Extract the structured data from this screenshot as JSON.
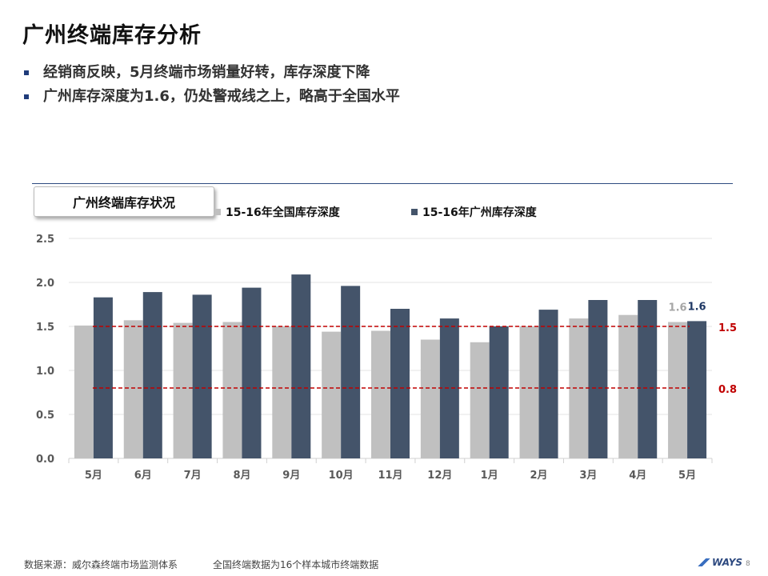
{
  "page": {
    "title": "广州终端库存分析",
    "bullets": [
      "经销商反映，5月终端市场销量好转，库存深度下降",
      "广州库存深度为1.6，仍处警戒线之上，略高于全国水平"
    ],
    "chart_label": "广州终端库存状况",
    "footer_source": "数据来源：威尔森终端市场监测体系",
    "footer_note": "全国终端数据为16个样本城市终端数据",
    "logo_text": "WAYS",
    "page_number": "8"
  },
  "chart_data": {
    "type": "bar",
    "categories": [
      "5月",
      "6月",
      "7月",
      "8月",
      "9月",
      "10月",
      "11月",
      "12月",
      "1月",
      "2月",
      "3月",
      "4月",
      "5月"
    ],
    "series": [
      {
        "name": "15-16年全国库存深度",
        "color": "#c0c0c0",
        "values": [
          1.51,
          1.57,
          1.54,
          1.55,
          1.5,
          1.44,
          1.45,
          1.35,
          1.32,
          1.5,
          1.59,
          1.63,
          1.55
        ]
      },
      {
        "name": "15-16年广州库存深度",
        "color": "#44546a",
        "values": [
          1.83,
          1.89,
          1.86,
          1.94,
          2.09,
          1.96,
          1.7,
          1.59,
          1.5,
          1.69,
          1.8,
          1.8,
          1.56
        ]
      }
    ],
    "last_labels": [
      "1.6",
      "1.6"
    ],
    "last_label_colors": [
      "#a6a6a6",
      "#1f3864"
    ],
    "reference_lines": [
      {
        "value": 1.5,
        "label": "1.5",
        "color": "#c00000"
      },
      {
        "value": 0.8,
        "label": "0.8",
        "color": "#c00000"
      }
    ],
    "ylim": [
      0,
      2.5
    ],
    "yticks": [
      "0.0",
      "0.5",
      "1.0",
      "1.5",
      "2.0",
      "2.5"
    ],
    "grid": true,
    "legend_position": "top"
  }
}
